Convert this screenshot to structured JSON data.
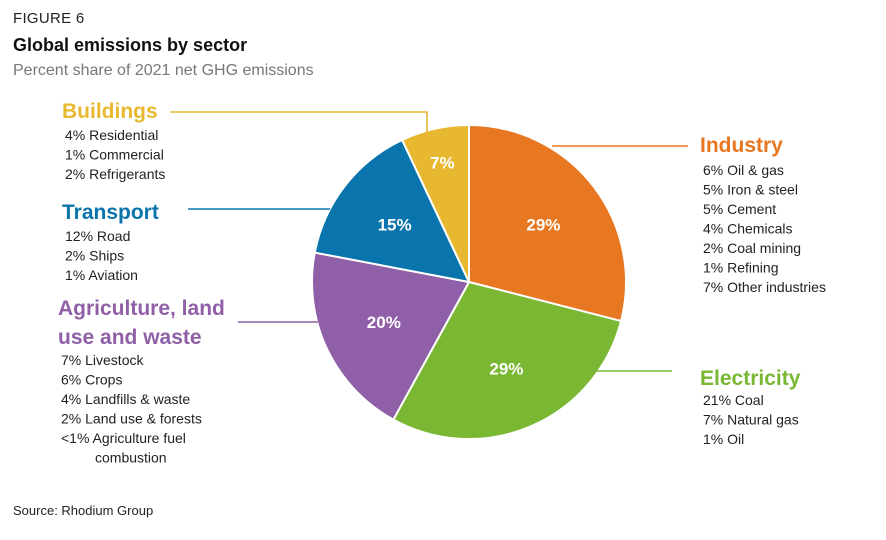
{
  "figure_label": "FIGURE 6",
  "title": "Global emissions by sector",
  "subtitle": "Percent share of 2021 net GHG emissions",
  "source": "Source: Rhodium Group",
  "chart_data": {
    "type": "pie",
    "title": "Global emissions by sector",
    "subtitle": "Percent share of 2021 net GHG emissions",
    "slices": [
      {
        "key": "industry",
        "name": "Industry",
        "value": 29,
        "label": "29%",
        "color": "#E87722",
        "items": [
          "6% Oil & gas",
          "5% Iron & steel",
          "5% Cement",
          "4% Chemicals",
          "2% Coal mining",
          "1% Refining",
          "7% Other industries"
        ]
      },
      {
        "key": "electricity",
        "name": "Electricity",
        "value": 29,
        "label": "29%",
        "color": "#7AB733",
        "items": [
          "21% Coal",
          "7% Natural gas",
          "1% Oil"
        ]
      },
      {
        "key": "agriculture",
        "name": "Agriculture, land use and waste",
        "name_lines": [
          "Agriculture, land",
          "use and waste"
        ],
        "value": 20,
        "label": "20%",
        "color": "#8F5FA7",
        "items": [
          "7% Livestock",
          "6% Crops",
          "4% Landfills & waste",
          "2% Land use & forests",
          "<1% Agriculture fuel combustion"
        ],
        "item_lines": [
          "7% Livestock",
          "6% Crops",
          "4% Landfills & waste",
          "2% Land use & forests",
          "<1% Agriculture fuel",
          "combustion"
        ]
      },
      {
        "key": "transport",
        "name": "Transport",
        "value": 15,
        "label": "15%",
        "color": "#0A75AD",
        "items": [
          "12% Road",
          "2% Ships",
          "1% Aviation"
        ]
      },
      {
        "key": "buildings",
        "name": "Buildings",
        "value": 7,
        "label": "7%",
        "color": "#E8B930",
        "items": [
          "4% Residential",
          "1% Commercial",
          "2% Refrigerants"
        ]
      }
    ]
  }
}
